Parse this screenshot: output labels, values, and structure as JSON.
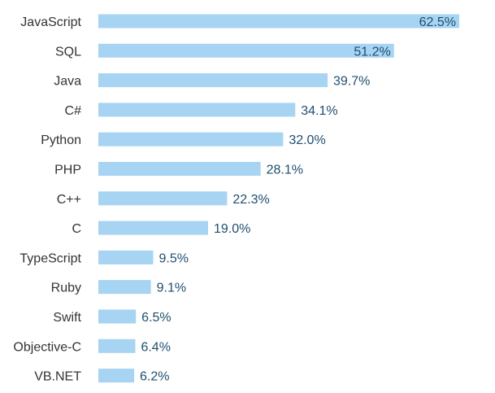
{
  "chart_data": {
    "type": "bar",
    "orientation": "horizontal",
    "categories": [
      "JavaScript",
      "SQL",
      "Java",
      "C#",
      "Python",
      "PHP",
      "C++",
      "C",
      "TypeScript",
      "Ruby",
      "Swift",
      "Objective-C",
      "VB.NET"
    ],
    "values": [
      62.5,
      51.2,
      39.7,
      34.1,
      32.0,
      28.1,
      22.3,
      19.0,
      9.5,
      9.1,
      6.5,
      6.4,
      6.2
    ],
    "value_labels": [
      "62.5%",
      "51.2%",
      "39.7%",
      "34.1%",
      "32.0%",
      "28.1%",
      "22.3%",
      "19.0%",
      "9.5%",
      "9.1%",
      "6.5%",
      "6.4%",
      "6.2%"
    ],
    "title": "",
    "xlabel": "",
    "ylabel": "",
    "xlim": [
      0,
      62.5
    ],
    "grid": false,
    "legend": "none",
    "bar_color": "#a6d4f2",
    "label_color": "#333333",
    "value_color": "#1f4e6e"
  }
}
